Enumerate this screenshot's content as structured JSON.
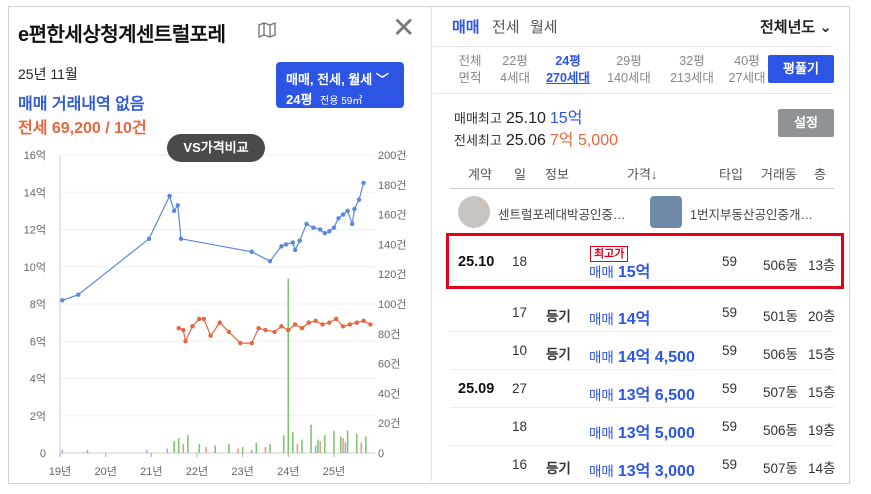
{
  "header": {
    "title": "e편한세상청계센트럴포레"
  },
  "summary_left": {
    "date": "25년 11월",
    "trade_status": "매매 거래내역 없음",
    "rent_status": "전세 69,200 / 10건"
  },
  "filter": {
    "types": "매매, 전세, 월세",
    "size": "24평",
    "size_detail": "전용 59㎡"
  },
  "vs_button": "VS가격비교",
  "chart_data": {
    "type": "line",
    "x_ticks": [
      "19년",
      "20년",
      "21년",
      "22년",
      "23년",
      "24년",
      "25년"
    ],
    "y_left_ticks": [
      "0",
      "2억",
      "4억",
      "6억",
      "8억",
      "10억",
      "12억",
      "14억",
      "16억"
    ],
    "y_right_ticks": [
      "0",
      "20건",
      "40건",
      "60건",
      "80건",
      "100건",
      "120건",
      "140건",
      "160건",
      "180건",
      "200건"
    ],
    "ylim_left": [
      0,
      16
    ],
    "ylim_right": [
      0,
      200
    ],
    "xlim": [
      2019,
      2025.9
    ],
    "series": [
      {
        "color": "#5b86e0",
        "points": [
          [
            2019.05,
            8.2
          ],
          [
            2019.4,
            8.5
          ],
          [
            2020.95,
            11.5
          ],
          [
            2021.4,
            13.8
          ],
          [
            2021.5,
            13.0
          ],
          [
            2021.58,
            13.3
          ],
          [
            2021.65,
            11.5
          ],
          [
            2023.2,
            10.8
          ],
          [
            2023.6,
            10.3
          ],
          [
            2023.85,
            11.1
          ],
          [
            2023.95,
            11.2
          ],
          [
            2024.1,
            11.3
          ],
          [
            2024.15,
            10.9
          ],
          [
            2024.25,
            11.4
          ],
          [
            2024.4,
            12.3
          ],
          [
            2024.55,
            12.1
          ],
          [
            2024.7,
            12.0
          ],
          [
            2024.8,
            11.8
          ],
          [
            2024.9,
            11.9
          ],
          [
            2025.0,
            12.1
          ],
          [
            2025.1,
            12.6
          ],
          [
            2025.2,
            12.8
          ],
          [
            2025.3,
            13.0
          ],
          [
            2025.4,
            12.3
          ],
          [
            2025.45,
            13.1
          ],
          [
            2025.55,
            13.6
          ],
          [
            2025.65,
            14.5
          ]
        ]
      },
      {
        "color": "#e8663d",
        "points": [
          [
            2021.6,
            6.7
          ],
          [
            2021.7,
            6.6
          ],
          [
            2021.75,
            6.0
          ],
          [
            2021.9,
            6.8
          ],
          [
            2022.05,
            7.2
          ],
          [
            2022.15,
            7.2
          ],
          [
            2022.3,
            6.3
          ],
          [
            2022.5,
            7.0
          ],
          [
            2022.7,
            6.5
          ],
          [
            2022.95,
            5.9
          ],
          [
            2023.2,
            5.9
          ],
          [
            2023.35,
            6.7
          ],
          [
            2023.5,
            6.6
          ],
          [
            2023.7,
            6.5
          ],
          [
            2023.85,
            6.8
          ],
          [
            2024.0,
            6.6
          ],
          [
            2024.15,
            6.9
          ],
          [
            2024.3,
            6.7
          ],
          [
            2024.45,
            7.0
          ],
          [
            2024.6,
            7.1
          ],
          [
            2024.75,
            6.9
          ],
          [
            2024.9,
            7.0
          ],
          [
            2025.05,
            7.2
          ],
          [
            2025.2,
            6.8
          ],
          [
            2025.35,
            6.9
          ],
          [
            2025.5,
            7.0
          ],
          [
            2025.65,
            7.1
          ],
          [
            2025.8,
            6.9
          ]
        ]
      }
    ],
    "volume_series": [
      {
        "color": "#7bc96f",
        "points": [
          [
            2021.5,
            8
          ],
          [
            2021.6,
            10
          ],
          [
            2021.8,
            12
          ],
          [
            2022.05,
            6
          ],
          [
            2022.4,
            5
          ],
          [
            2022.7,
            6
          ],
          [
            2023.0,
            4
          ],
          [
            2023.3,
            7
          ],
          [
            2023.6,
            6
          ],
          [
            2023.9,
            12
          ],
          [
            2024.0,
            117
          ],
          [
            2024.1,
            14
          ],
          [
            2024.3,
            9
          ],
          [
            2024.5,
            19
          ],
          [
            2024.65,
            9
          ],
          [
            2024.8,
            12
          ],
          [
            2025.0,
            15
          ],
          [
            2025.15,
            11
          ],
          [
            2025.3,
            15
          ],
          [
            2025.5,
            13
          ],
          [
            2025.7,
            11
          ]
        ]
      },
      {
        "color": "#e89a8a",
        "points": [
          [
            2021.7,
            6
          ],
          [
            2022.2,
            4
          ],
          [
            2022.9,
            3
          ],
          [
            2023.5,
            4
          ],
          [
            2024.2,
            6
          ],
          [
            2024.7,
            8
          ],
          [
            2025.2,
            10
          ],
          [
            2025.6,
            7
          ]
        ]
      },
      {
        "color": "#9aa8e8",
        "points": [
          [
            2019.05,
            2
          ],
          [
            2019.6,
            2
          ],
          [
            2020.9,
            2
          ],
          [
            2021.35,
            3
          ],
          [
            2023.2,
            2
          ],
          [
            2024.6,
            5
          ],
          [
            2025.25,
            7
          ]
        ]
      }
    ]
  },
  "right_tabs": [
    "매매",
    "전세",
    "월세"
  ],
  "year_select": "전체년도",
  "sizes": [
    {
      "top": "전체",
      "bottom": "면적"
    },
    {
      "top": "22평",
      "bottom": "4세대"
    },
    {
      "top": "24평",
      "bottom": "270세대"
    },
    {
      "top": "29평",
      "bottom": "140세대"
    },
    {
      "top": "32평",
      "bottom": "213세대"
    },
    {
      "top": "40평",
      "bottom": "27세대"
    }
  ],
  "flat_button": "평풀기",
  "max_trade": {
    "label": "매매최고",
    "date": "25.10",
    "price": "15억"
  },
  "max_rent": {
    "label": "전세최고",
    "date": "25.06",
    "price": "7억 5,000"
  },
  "settings_button": "설정",
  "table_headers": [
    "계약",
    "일",
    "정보",
    "가격↓",
    "타입",
    "거래동",
    "층"
  ],
  "agents": [
    "센트럴포레대박공인중…",
    "1번지부동산공인중개…"
  ],
  "max_badge": "최고가",
  "rows": [
    {
      "ym": "25.10",
      "day": "18",
      "info": "",
      "kind": "매매",
      "price": "15억",
      "type": "59",
      "dong": "506동",
      "floor": "13층"
    },
    {
      "ym": "",
      "day": "17",
      "info": "등기",
      "kind": "매매",
      "price": "14억",
      "type": "59",
      "dong": "501동",
      "floor": "20층"
    },
    {
      "ym": "",
      "day": "10",
      "info": "등기",
      "kind": "매매",
      "price": "14억 4,500",
      "type": "59",
      "dong": "506동",
      "floor": "15층"
    },
    {
      "ym": "25.09",
      "day": "27",
      "info": "",
      "kind": "매매",
      "price": "13억 6,500",
      "type": "59",
      "dong": "507동",
      "floor": "15층"
    },
    {
      "ym": "",
      "day": "18",
      "info": "",
      "kind": "매매",
      "price": "13억 5,000",
      "type": "59",
      "dong": "506동",
      "floor": "19층"
    },
    {
      "ym": "",
      "day": "16",
      "info": "등기",
      "kind": "매매",
      "price": "13억 3,000",
      "type": "59",
      "dong": "507동",
      "floor": "14층"
    }
  ]
}
